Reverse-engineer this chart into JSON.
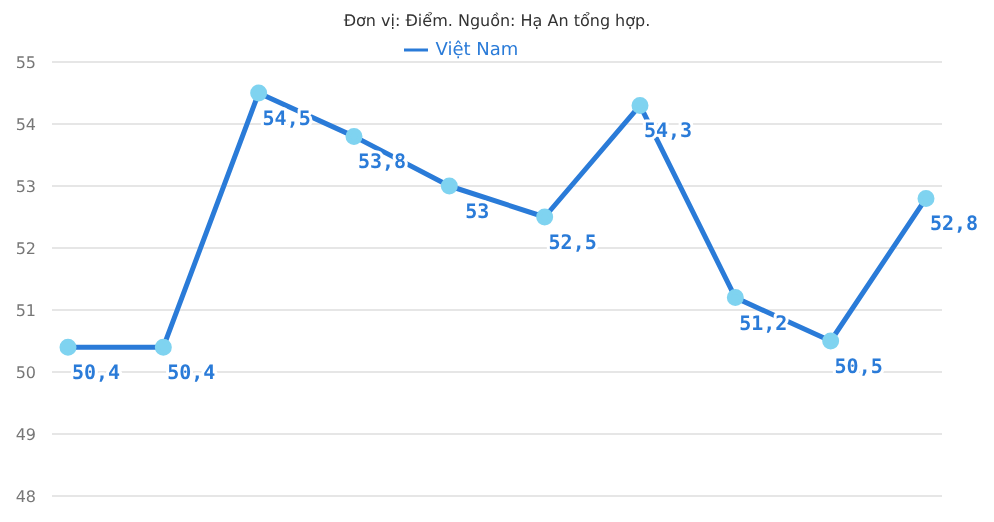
{
  "chart_data": {
    "type": "line",
    "subtitle": "Đơn vị: Điểm. Nguồn: Hạ An tổng hợp.",
    "categories": [
      null,
      null,
      null,
      null,
      null,
      null,
      null,
      null,
      null,
      null
    ],
    "series": [
      {
        "name": "Việt Nam",
        "color": "#2a7bd8",
        "values": [
          50.4,
          50.4,
          54.5,
          53.8,
          53,
          52.5,
          54.3,
          51.2,
          50.5,
          52.8
        ],
        "value_labels": [
          "50,4",
          "50,4",
          "54,5",
          "53,8",
          "53",
          "52,5",
          "54,3",
          "51,2",
          "50,5",
          "52,8"
        ]
      }
    ],
    "ylim": [
      48,
      55
    ],
    "yticks": [
      48,
      49,
      50,
      51,
      52,
      53,
      54,
      55
    ],
    "grid": "y",
    "legend": "top",
    "marker": "circle",
    "line_style": "solid",
    "tick_labels": "y"
  }
}
